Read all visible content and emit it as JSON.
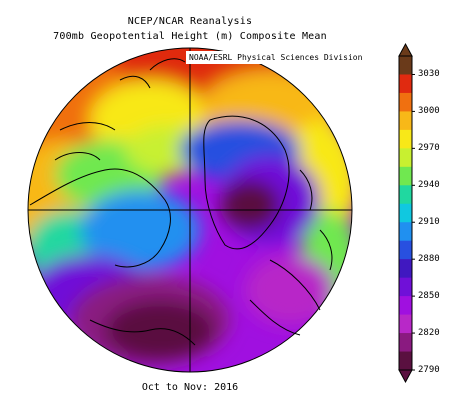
{
  "header": {
    "line1": "NCEP/NCAR Reanalysis",
    "line2": "700mb Geopotential Height (m) Composite Mean"
  },
  "credit": "NOAA/ESRL Physical Sciences Division",
  "footer": {
    "date_range": "Oct to Nov: 2016"
  },
  "legend": {
    "tick_labels": [
      "3030",
      "3000",
      "2970",
      "2940",
      "2910",
      "2880",
      "2850",
      "2820",
      "2790"
    ],
    "colors": [
      "#6a3a1a",
      "#e02a10",
      "#f07010",
      "#f8b818",
      "#f8e818",
      "#c8f030",
      "#70e850",
      "#20d8a0",
      "#10c8e0",
      "#2090f0",
      "#2850e0",
      "#4018c0",
      "#7010d8",
      "#a010e0",
      "#b828c8",
      "#8a1a80",
      "#5a1040"
    ]
  },
  "map": {
    "projection": "north-polar-stereographic",
    "features": [
      "coastlines",
      "prime-meridian",
      "equator-cross"
    ]
  }
}
